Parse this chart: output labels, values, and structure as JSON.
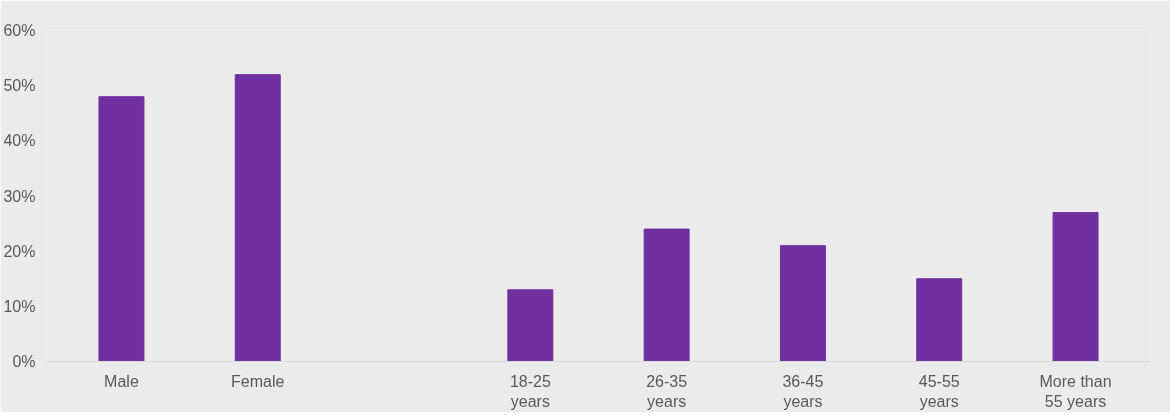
{
  "chart_data": {
    "type": "bar",
    "categories": [
      "Male",
      "Female",
      null,
      "18-25 years",
      "26-35 years",
      "36-45 years",
      "45-55 years",
      "More than 55 years"
    ],
    "values": [
      48,
      52,
      null,
      13,
      24,
      21,
      15,
      27
    ],
    "color": "#7030a0",
    "ylim": [
      0,
      60
    ],
    "yticks": [
      {
        "value": 0,
        "label": "0%"
      },
      {
        "value": 10,
        "label": "10%"
      },
      {
        "value": 20,
        "label": "20%"
      },
      {
        "value": 30,
        "label": "30%"
      },
      {
        "value": 40,
        "label": "40%"
      },
      {
        "value": 50,
        "label": "50%"
      },
      {
        "value": 60,
        "label": "60%"
      }
    ],
    "grid": false
  }
}
